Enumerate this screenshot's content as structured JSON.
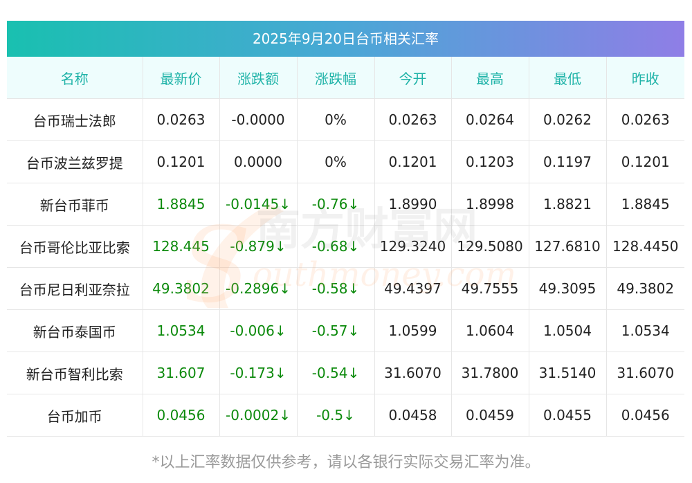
{
  "title": "2025年9月20日台币相关汇率",
  "headers": [
    "名称",
    "最新价",
    "涨跌额",
    "涨跌幅",
    "今开",
    "最高",
    "最低",
    "昨收"
  ],
  "rows": [
    {
      "name": "台币瑞士法郎",
      "latest": "0.0263",
      "change": "-0.0000",
      "change_pct": "0%",
      "open": "0.0263",
      "high": "0.0264",
      "low": "0.0262",
      "prev_close": "0.0263",
      "colored": false,
      "arrow": ""
    },
    {
      "name": "台币波兰兹罗提",
      "latest": "0.1201",
      "change": "0.0000",
      "change_pct": "0%",
      "open": "0.1201",
      "high": "0.1203",
      "low": "0.1197",
      "prev_close": "0.1201",
      "colored": false,
      "arrow": ""
    },
    {
      "name": "新台币菲币",
      "latest": "1.8845",
      "change": "-0.0145",
      "change_pct": "-0.76",
      "open": "1.8990",
      "high": "1.8998",
      "low": "1.8821",
      "prev_close": "1.8845",
      "colored": true,
      "arrow": "↓"
    },
    {
      "name": "台币哥伦比亚比索",
      "latest": "128.445",
      "change": "-0.879",
      "change_pct": "-0.68",
      "open": "129.3240",
      "high": "129.5080",
      "low": "127.6810",
      "prev_close": "128.4450",
      "colored": true,
      "arrow": "↓"
    },
    {
      "name": "台币尼日利亚奈拉",
      "latest": "49.3802",
      "change": "-0.2896",
      "change_pct": "-0.58",
      "open": "49.4397",
      "high": "49.7555",
      "low": "49.3095",
      "prev_close": "49.3802",
      "colored": true,
      "arrow": "↓"
    },
    {
      "name": "新台币泰国币",
      "latest": "1.0534",
      "change": "-0.006",
      "change_pct": "-0.57",
      "open": "1.0599",
      "high": "1.0604",
      "low": "1.0504",
      "prev_close": "1.0534",
      "colored": true,
      "arrow": "↓"
    },
    {
      "name": "新台币智利比索",
      "latest": "31.607",
      "change": "-0.173",
      "change_pct": "-0.54",
      "open": "31.6070",
      "high": "31.7800",
      "low": "31.5140",
      "prev_close": "31.6070",
      "colored": true,
      "arrow": "↓"
    },
    {
      "name": "台币加币",
      "latest": "0.0456",
      "change": "-0.0002",
      "change_pct": "-0.5",
      "open": "0.0458",
      "high": "0.0459",
      "low": "0.0455",
      "prev_close": "0.0456",
      "colored": true,
      "arrow": "↓"
    }
  ],
  "watermark": {
    "cn": "南方财富网",
    "en": "outhmoney.com",
    "s_letter": "S"
  },
  "footnote": "*以上汇率数据仅供参考，请以各银行实际交易汇率为准。",
  "colors": {
    "header_text": "#1fb3a8",
    "header_bg": "#eefdfd",
    "down_green": "#0c8a0c",
    "title_gradient_start": "#19c0b0",
    "title_gradient_end": "#8f7ee6"
  },
  "chart_data": {
    "type": "table",
    "title": "2025年9月20日台币相关汇率",
    "columns": [
      "名称",
      "最新价",
      "涨跌额",
      "涨跌幅",
      "今开",
      "最高",
      "最低",
      "昨收"
    ],
    "rows": [
      [
        "台币瑞士法郎",
        "0.0263",
        "-0.0000",
        "0%",
        "0.0263",
        "0.0264",
        "0.0262",
        "0.0263"
      ],
      [
        "台币波兰兹罗提",
        "0.1201",
        "0.0000",
        "0%",
        "0.1201",
        "0.1203",
        "0.1197",
        "0.1201"
      ],
      [
        "新台币菲币",
        "1.8845",
        "-0.0145↓",
        "-0.76↓",
        "1.8990",
        "1.8998",
        "1.8821",
        "1.8845"
      ],
      [
        "台币哥伦比亚比索",
        "128.445",
        "-0.879↓",
        "-0.68↓",
        "129.3240",
        "129.5080",
        "127.6810",
        "128.4450"
      ],
      [
        "台币尼日利亚奈拉",
        "49.3802",
        "-0.2896↓",
        "-0.58↓",
        "49.4397",
        "49.7555",
        "49.3095",
        "49.3802"
      ],
      [
        "新台币泰国币",
        "1.0534",
        "-0.006↓",
        "-0.57↓",
        "1.0599",
        "1.0604",
        "1.0504",
        "1.0534"
      ],
      [
        "新台币智利比索",
        "31.607",
        "-0.173↓",
        "-0.54↓",
        "31.6070",
        "31.7800",
        "31.5140",
        "31.6070"
      ],
      [
        "台币加币",
        "0.0456",
        "-0.0002↓",
        "-0.5↓",
        "0.0458",
        "0.0459",
        "0.0455",
        "0.0456"
      ]
    ]
  }
}
